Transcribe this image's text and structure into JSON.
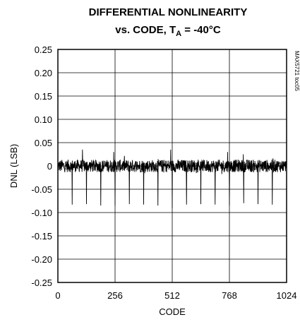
{
  "chart_data": {
    "type": "line",
    "title_line1": "DIFFERENTIAL NONLINEARITY",
    "title_line2_prefix": "vs. CODE, T",
    "title_line2_subscript": "A",
    "title_line2_suffix": " = -40°C",
    "xlabel": "CODE",
    "ylabel": "DNL (LSB)",
    "side_note": "MAX5721 toc05",
    "xlim": [
      0,
      1024
    ],
    "ylim": [
      -0.25,
      0.25
    ],
    "x_ticks": [
      0,
      256,
      512,
      768,
      1024
    ],
    "x_tick_labels": [
      "0",
      "256",
      "512",
      "768",
      "1024"
    ],
    "y_ticks": [
      0.25,
      0.2,
      0.15,
      0.1,
      0.05,
      0,
      -0.05,
      -0.1,
      -0.15,
      -0.2,
      -0.25
    ],
    "y_tick_labels": [
      "0.25",
      "0.20",
      "0.15",
      "0.10",
      "0.05",
      "0",
      "-0.05",
      "-0.10",
      "-0.15",
      "-0.20",
      "-0.25"
    ],
    "grid": true,
    "series": [
      {
        "color": "#000000",
        "noise_band": [
          -0.015,
          0.015
        ],
        "positive_spikes": [
          {
            "x": 110,
            "y": 0.035
          },
          {
            "x": 250,
            "y": 0.03
          },
          {
            "x": 505,
            "y": 0.035
          },
          {
            "x": 640,
            "y": 0.028
          },
          {
            "x": 760,
            "y": 0.03
          },
          {
            "x": 830,
            "y": 0.025
          }
        ],
        "negative_spikes": [
          {
            "x": 64,
            "y": -0.083
          },
          {
            "x": 128,
            "y": -0.082
          },
          {
            "x": 192,
            "y": -0.085
          },
          {
            "x": 256,
            "y": -0.085
          },
          {
            "x": 320,
            "y": -0.082
          },
          {
            "x": 384,
            "y": -0.083
          },
          {
            "x": 448,
            "y": -0.085
          },
          {
            "x": 512,
            "y": -0.09
          },
          {
            "x": 576,
            "y": -0.083
          },
          {
            "x": 640,
            "y": -0.082
          },
          {
            "x": 704,
            "y": -0.083
          },
          {
            "x": 768,
            "y": -0.085
          },
          {
            "x": 832,
            "y": -0.08
          },
          {
            "x": 896,
            "y": -0.082
          },
          {
            "x": 960,
            "y": -0.083
          }
        ]
      }
    ]
  }
}
